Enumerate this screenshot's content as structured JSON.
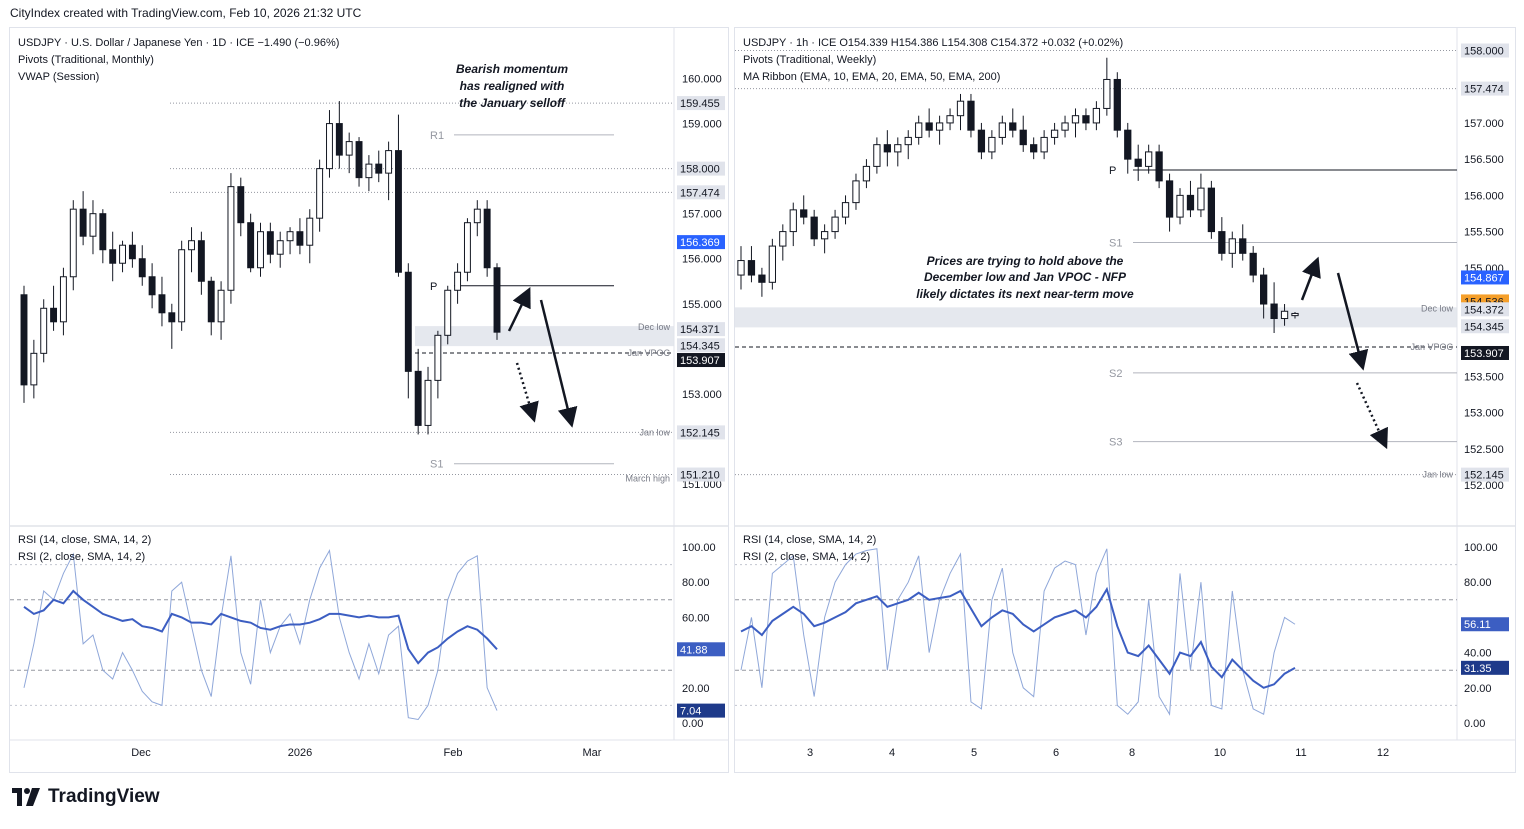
{
  "header": {
    "credit": "CityIndex created with TradingView.com, Feb 10, 2026 21:32 UTC"
  },
  "brand": {
    "name": "TradingView",
    "logo_icon": "tradingview-logo-icon"
  },
  "colors": {
    "bull": "#ffffff",
    "bear": "#131722",
    "rsi14": "#3c5ec2",
    "rsi2": "#8fa7d9",
    "blue_badge": "#2962ff",
    "orange_badge": "#f59f2a"
  },
  "daily": {
    "legend": [
      "USDJPY · U.S. Dollar / Japanese Yen · 1D · ICE  −1.490 (−0.96%)",
      "Pivots (Traditional, Monthly)",
      "VWAP (Session)"
    ],
    "annotation": [
      "Bearish momentum",
      "has realigned with",
      "the January selloff"
    ],
    "pivot_labels": [
      "R1",
      "P",
      "S1"
    ],
    "level_labels": [
      "Dec low",
      "Jan VPOC",
      "Jan low",
      "March high"
    ],
    "price_ticks": [
      "160.000",
      "159.000",
      "157.000",
      "156.000",
      "155.000",
      "153.000",
      "151.000"
    ],
    "price_badges": [
      "159.455",
      "158.000",
      "157.474",
      "156.369",
      "154.371",
      "154.345",
      "153.907",
      "152.145",
      "151.210"
    ],
    "time_ticks": [
      "Dec",
      "2026",
      "Feb",
      "Mar"
    ],
    "rsi_legend": [
      "RSI (14, close, SMA, 14, 2)",
      "RSI (2, close, SMA, 14, 2)"
    ],
    "rsi_ticks": [
      "100.00",
      "80.00",
      "60.00",
      "20.00",
      "0.00"
    ],
    "rsi_badges": [
      "41.88",
      "7.04"
    ]
  },
  "hourly": {
    "legend": [
      "USDJPY · 1h · ICE   O154.339  H154.386  L154.308  C154.372  +0.032 (+0.02%)",
      "Pivots (Traditional, Weekly)",
      "MA Ribbon (EMA, 10, EMA, 20, EMA, 50, EMA, 200)"
    ],
    "annotation": [
      "Prices are trying to hold above the",
      "December low and Jan VPOC - NFP",
      "likely dictates its next near-term move"
    ],
    "pivot_labels": [
      "P",
      "S1",
      "S2",
      "S3"
    ],
    "level_labels": [
      "Dec low",
      "Jan VPOC",
      "Jan low"
    ],
    "price_ticks": [
      "157.000",
      "156.500",
      "156.000",
      "155.500",
      "155.000",
      "153.500",
      "153.000",
      "152.500",
      "152.000"
    ],
    "price_badges": [
      "158.000",
      "157.474",
      "154.867",
      "154.536",
      "154.372",
      "154.345",
      "153.907",
      "152.145"
    ],
    "time_ticks": [
      "3",
      "4",
      "5",
      "6",
      "8",
      "10",
      "11",
      "12"
    ],
    "rsi_legend": [
      "RSI (14, close, SMA, 14, 2)",
      "RSI (2, close, SMA, 14, 2)"
    ],
    "rsi_ticks": [
      "100.00",
      "80.00",
      "40.00",
      "20.00",
      "0.00"
    ],
    "rsi_badges": [
      "56.11",
      "31.35"
    ]
  },
  "chart_data": [
    {
      "type": "candlestick",
      "title": "USDJPY · U.S. Dollar / Japanese Yen · 1D · ICE",
      "ylim": [
        150.8,
        160.5
      ],
      "levels": {
        "R1": 158.75,
        "P": 155.4,
        "S1": 151.45,
        "Dec low": 154.371,
        "Jan VPOC": 153.907,
        "Jan low": 152.145,
        "March high": 151.21,
        "159.455": 159.455,
        "158.000": 158.0,
        "157.474": 157.474
      },
      "ohlc": [
        [
          155.2,
          155.4,
          152.8,
          153.2
        ],
        [
          153.2,
          154.2,
          152.9,
          153.9
        ],
        [
          153.9,
          155.1,
          153.7,
          154.9
        ],
        [
          154.9,
          155.4,
          154.4,
          154.6
        ],
        [
          154.6,
          155.8,
          154.3,
          155.6
        ],
        [
          155.6,
          157.3,
          155.3,
          157.1
        ],
        [
          157.1,
          157.5,
          156.3,
          156.5
        ],
        [
          156.5,
          157.3,
          156.1,
          157.0
        ],
        [
          157.0,
          157.1,
          155.9,
          156.2
        ],
        [
          156.2,
          156.6,
          155.5,
          155.9
        ],
        [
          155.9,
          156.4,
          155.7,
          156.3
        ],
        [
          156.3,
          156.6,
          155.8,
          156.0
        ],
        [
          156.0,
          156.3,
          155.4,
          155.6
        ],
        [
          155.6,
          155.9,
          154.9,
          155.2
        ],
        [
          155.2,
          155.6,
          154.5,
          154.8
        ],
        [
          154.8,
          155.0,
          154.0,
          154.6
        ],
        [
          154.6,
          156.4,
          154.4,
          156.2
        ],
        [
          156.2,
          156.7,
          155.7,
          156.4
        ],
        [
          156.4,
          156.6,
          155.2,
          155.5
        ],
        [
          155.5,
          155.6,
          154.3,
          154.6
        ],
        [
          154.6,
          155.5,
          154.2,
          155.3
        ],
        [
          155.3,
          157.9,
          155.0,
          157.6
        ],
        [
          157.6,
          157.8,
          156.5,
          156.8
        ],
        [
          156.8,
          157.0,
          155.7,
          155.8
        ],
        [
          155.8,
          156.8,
          155.6,
          156.6
        ],
        [
          156.6,
          156.8,
          155.9,
          156.1
        ],
        [
          156.1,
          156.6,
          155.8,
          156.4
        ],
        [
          156.4,
          156.7,
          156.1,
          156.6
        ],
        [
          156.6,
          156.9,
          156.1,
          156.3
        ],
        [
          156.3,
          157.1,
          155.9,
          156.9
        ],
        [
          156.9,
          158.2,
          156.6,
          158.0
        ],
        [
          158.0,
          159.3,
          157.8,
          159.0
        ],
        [
          159.0,
          159.5,
          158.0,
          158.3
        ],
        [
          158.3,
          158.8,
          157.9,
          158.6
        ],
        [
          158.6,
          158.7,
          157.6,
          157.8
        ],
        [
          157.8,
          158.3,
          157.5,
          158.1
        ],
        [
          158.1,
          158.4,
          157.7,
          157.9
        ],
        [
          157.9,
          158.6,
          157.3,
          158.4
        ],
        [
          158.4,
          159.2,
          155.6,
          155.7
        ],
        [
          155.7,
          155.9,
          152.9,
          153.5
        ],
        [
          153.5,
          154.0,
          152.1,
          152.3
        ],
        [
          152.3,
          153.6,
          152.1,
          153.3
        ],
        [
          153.3,
          154.4,
          152.9,
          154.3
        ],
        [
          154.3,
          155.4,
          154.1,
          155.3
        ],
        [
          155.3,
          155.9,
          155.0,
          155.7
        ],
        [
          155.7,
          156.9,
          155.5,
          156.8
        ],
        [
          156.8,
          157.3,
          156.5,
          157.1
        ],
        [
          157.1,
          157.3,
          155.6,
          155.8
        ],
        [
          155.8,
          155.9,
          154.2,
          154.37
        ]
      ],
      "rsi_14": [
        66,
        62,
        64,
        70,
        68,
        75,
        70,
        66,
        62,
        60,
        58,
        59,
        55,
        54,
        52,
        62,
        60,
        57,
        57,
        56,
        62,
        60,
        58,
        57,
        54,
        53,
        55,
        56,
        56,
        57,
        59,
        62,
        62,
        61,
        60,
        61,
        60,
        60,
        61,
        42,
        34,
        40,
        43,
        48,
        52,
        55,
        53,
        48,
        41.88
      ],
      "rsi_2": [
        20,
        45,
        75,
        70,
        85,
        96,
        45,
        50,
        30,
        25,
        40,
        30,
        18,
        12,
        10,
        75,
        80,
        55,
        30,
        15,
        60,
        95,
        40,
        22,
        70,
        40,
        55,
        62,
        45,
        70,
        88,
        98,
        60,
        40,
        25,
        45,
        28,
        50,
        55,
        3,
        2,
        10,
        30,
        70,
        85,
        92,
        95,
        20,
        7.04
      ]
    },
    {
      "type": "candlestick",
      "title": "USDJPY · 1h · ICE",
      "ylim": [
        151.85,
        158.2
      ],
      "levels": {
        "P": 156.35,
        "S1": 155.35,
        "S2": 153.55,
        "S3": 152.6,
        "Dec low": 154.371,
        "Jan VPOC": 153.907,
        "Jan low": 152.145,
        "158.000": 158.0,
        "157.474": 157.474
      },
      "ohlc": [
        [
          154.9,
          155.3,
          154.7,
          155.1
        ],
        [
          155.1,
          155.3,
          154.8,
          154.9
        ],
        [
          154.9,
          155.0,
          154.6,
          154.8
        ],
        [
          154.8,
          155.4,
          154.7,
          155.3
        ],
        [
          155.3,
          155.6,
          155.1,
          155.5
        ],
        [
          155.5,
          155.9,
          155.3,
          155.8
        ],
        [
          155.8,
          156.0,
          155.6,
          155.7
        ],
        [
          155.7,
          155.8,
          155.3,
          155.4
        ],
        [
          155.4,
          155.6,
          155.2,
          155.5
        ],
        [
          155.5,
          155.8,
          155.4,
          155.7
        ],
        [
          155.7,
          156.0,
          155.6,
          155.9
        ],
        [
          155.9,
          156.3,
          155.8,
          156.2
        ],
        [
          156.2,
          156.5,
          156.1,
          156.4
        ],
        [
          156.4,
          156.8,
          156.3,
          156.7
        ],
        [
          156.7,
          156.9,
          156.4,
          156.6
        ],
        [
          156.6,
          156.8,
          156.4,
          156.7
        ],
        [
          156.7,
          156.9,
          156.5,
          156.8
        ],
        [
          156.8,
          157.1,
          156.7,
          157.0
        ],
        [
          157.0,
          157.2,
          156.8,
          156.9
        ],
        [
          156.9,
          157.1,
          156.7,
          157.0
        ],
        [
          157.0,
          157.2,
          156.9,
          157.1
        ],
        [
          157.1,
          157.4,
          156.9,
          157.3
        ],
        [
          157.3,
          157.4,
          156.8,
          156.9
        ],
        [
          156.9,
          157.0,
          156.5,
          156.6
        ],
        [
          156.6,
          156.9,
          156.5,
          156.8
        ],
        [
          156.8,
          157.1,
          156.7,
          157.0
        ],
        [
          157.0,
          157.2,
          156.8,
          156.9
        ],
        [
          156.9,
          157.1,
          156.6,
          156.7
        ],
        [
          156.7,
          156.8,
          156.5,
          156.6
        ],
        [
          156.6,
          156.9,
          156.5,
          156.8
        ],
        [
          156.8,
          157.0,
          156.7,
          156.9
        ],
        [
          156.9,
          157.1,
          156.8,
          157.0
        ],
        [
          157.0,
          157.2,
          156.8,
          157.1
        ],
        [
          157.1,
          157.2,
          156.9,
          157.0
        ],
        [
          157.0,
          157.3,
          156.9,
          157.2
        ],
        [
          157.2,
          157.9,
          157.1,
          157.6
        ],
        [
          157.6,
          157.7,
          156.8,
          156.9
        ],
        [
          156.9,
          157.0,
          156.3,
          156.5
        ],
        [
          156.5,
          156.7,
          156.2,
          156.4
        ],
        [
          156.4,
          156.7,
          156.3,
          156.6
        ],
        [
          156.6,
          156.7,
          156.1,
          156.2
        ],
        [
          156.2,
          156.3,
          155.5,
          155.7
        ],
        [
          155.7,
          156.1,
          155.6,
          156.0
        ],
        [
          156.0,
          156.2,
          155.7,
          155.8
        ],
        [
          155.8,
          156.3,
          155.7,
          156.1
        ],
        [
          156.1,
          156.2,
          155.4,
          155.5
        ],
        [
          155.5,
          155.7,
          155.1,
          155.2
        ],
        [
          155.2,
          155.5,
          155.0,
          155.4
        ],
        [
          155.4,
          155.6,
          155.1,
          155.2
        ],
        [
          155.2,
          155.3,
          154.8,
          154.9
        ],
        [
          154.9,
          155.0,
          154.3,
          154.5
        ],
        [
          154.5,
          154.8,
          154.1,
          154.3
        ],
        [
          154.3,
          154.5,
          154.2,
          154.4
        ],
        [
          154.34,
          154.39,
          154.3,
          154.37
        ]
      ],
      "rsi_14": [
        52,
        55,
        50,
        58,
        62,
        66,
        62,
        55,
        57,
        60,
        63,
        68,
        70,
        72,
        66,
        68,
        70,
        74,
        70,
        71,
        72,
        75,
        65,
        55,
        60,
        64,
        62,
        56,
        52,
        56,
        60,
        62,
        64,
        60,
        66,
        76,
        55,
        40,
        38,
        44,
        36,
        28,
        40,
        38,
        46,
        32,
        26,
        36,
        30,
        24,
        20,
        22,
        28,
        31.35
      ],
      "rsi_2": [
        30,
        60,
        20,
        85,
        90,
        95,
        50,
        15,
        60,
        80,
        90,
        96,
        98,
        99,
        30,
        70,
        80,
        95,
        40,
        70,
        85,
        96,
        12,
        8,
        70,
        88,
        40,
        20,
        15,
        75,
        88,
        92,
        90,
        50,
        85,
        99,
        10,
        5,
        12,
        70,
        15,
        5,
        85,
        30,
        80,
        10,
        8,
        75,
        30,
        8,
        5,
        40,
        60,
        56.11
      ]
    }
  ]
}
